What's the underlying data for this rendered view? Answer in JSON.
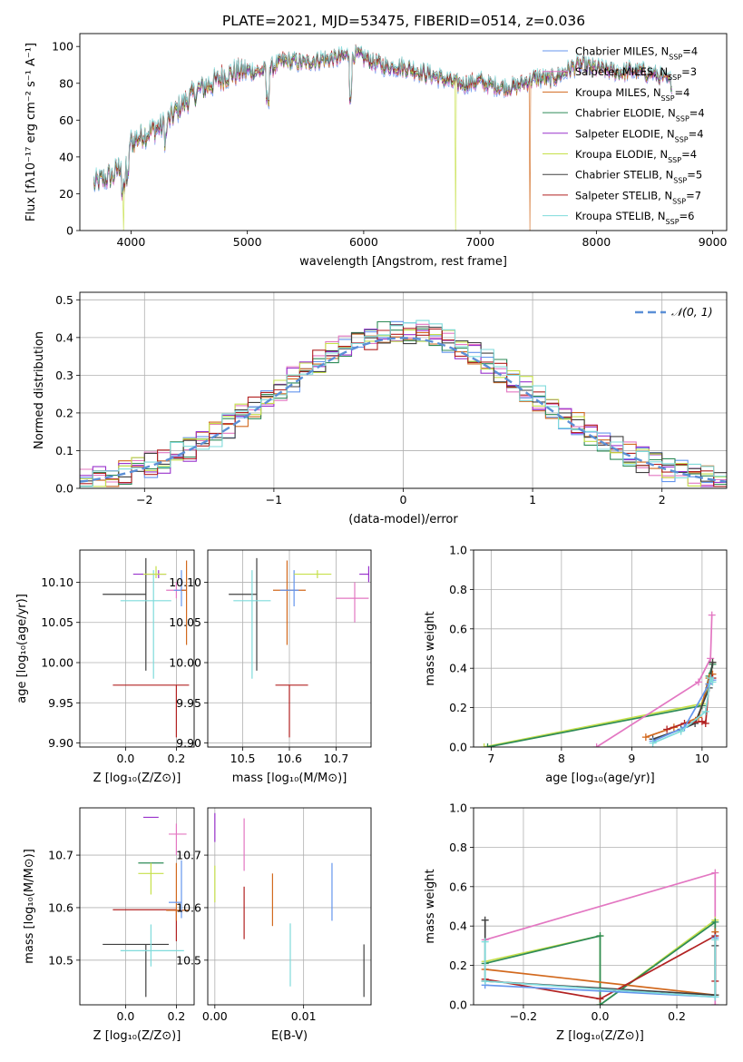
{
  "chart_data": [
    {
      "type": "line",
      "id": "spectrum",
      "title": "PLATE=2021, MJD=53475, FIBERID=0514, z=0.036",
      "xlabel": "wavelength [Angstrom, rest frame]",
      "ylabel": "Flux [fλ10⁻¹⁷ erg cm⁻² s⁻¹ A⁻¹]",
      "xlim": [
        3560,
        9120
      ],
      "ylim": [
        0,
        107
      ],
      "xticks": [
        4000,
        5000,
        6000,
        7000,
        8000,
        9000
      ],
      "yticks": [
        0,
        20,
        40,
        60,
        80,
        100
      ],
      "grid": false,
      "legend_position": "top-right",
      "shape": {
        "x": [
          3680,
          3760,
          3850,
          3900,
          3950,
          4000,
          4100,
          4200,
          4300,
          4400,
          4500,
          4600,
          4700,
          4800,
          4900,
          5000,
          5100,
          5200,
          5300,
          5400,
          5500,
          5600,
          5700,
          5800,
          5900,
          6000,
          6100,
          6200,
          6300,
          6400,
          6500,
          6600,
          6700,
          6800,
          6900,
          7000,
          7100,
          7200,
          7300,
          7400,
          7500,
          7600,
          7700,
          7800,
          7900,
          8000,
          8100,
          8200,
          8300,
          8400,
          8500,
          8600,
          8650
        ],
        "y": [
          25,
          28,
          30,
          35,
          42,
          48,
          52,
          55,
          58,
          66,
          72,
          77,
          80,
          84,
          86,
          87,
          86,
          88,
          92,
          92,
          91,
          93,
          93,
          94,
          96,
          94,
          91,
          89,
          89,
          88,
          86,
          84,
          82,
          80,
          80,
          81,
          79,
          78,
          78,
          81,
          83,
          82,
          85,
          89,
          90,
          88,
          87,
          86,
          87,
          86,
          85,
          82,
          80
        ]
      },
      "dips": [
        {
          "x": 3935,
          "y": 0,
          "series": 5
        },
        {
          "x": 6790,
          "y": 0,
          "series": 5
        },
        {
          "x": 7430,
          "y": 0,
          "series": 2
        }
      ],
      "series": [
        {
          "name": "Chabrier MILES, N",
          "sub": "SSP",
          "suffix": "=4",
          "color": "#6495ed"
        },
        {
          "name": "Salpeter MILES, N",
          "sub": "SSP",
          "suffix": "=3",
          "color": "#e377c2"
        },
        {
          "name": "Kroupa MILES, N",
          "sub": "SSP",
          "suffix": "=4",
          "color": "#d2691e"
        },
        {
          "name": "Chabrier ELODIE, N",
          "sub": "SSP",
          "suffix": "=4",
          "color": "#2e8b57"
        },
        {
          "name": "Salpeter ELODIE, N",
          "sub": "SSP",
          "suffix": "=4",
          "color": "#9932cc"
        },
        {
          "name": "Kroupa ELODIE, N",
          "sub": "SSP",
          "suffix": "=4",
          "color": "#c6e04a"
        },
        {
          "name": "Chabrier STELIB, N",
          "sub": "SSP",
          "suffix": "=5",
          "color": "#404040"
        },
        {
          "name": "Salpeter STELIB, N",
          "sub": "SSP",
          "suffix": "=7",
          "color": "#b22222"
        },
        {
          "name": "Kroupa STELIB, N",
          "sub": "SSP",
          "suffix": "=6",
          "color": "#7fdbdb"
        }
      ]
    },
    {
      "type": "step",
      "id": "residuals",
      "xlabel": "(data-model)/error",
      "ylabel": "Normed distribution",
      "xlim": [
        -2.5,
        2.5
      ],
      "ylim": [
        0,
        0.52
      ],
      "xticks": [
        -2,
        -1,
        0,
        1,
        2
      ],
      "yticks": [
        0.0,
        0.1,
        0.2,
        0.3,
        0.4,
        0.5
      ],
      "xtick_labels": [
        "−2",
        "−1",
        "0",
        "1",
        "2"
      ],
      "ytick_labels": [
        "0.0",
        "0.1",
        "0.2",
        "0.3",
        "0.4",
        "0.5"
      ],
      "grid": true,
      "bin_width": 0.1,
      "legend": {
        "label": "𝒩(0, 1)",
        "color": "#5b8fd6",
        "position": "top-right"
      }
    },
    {
      "type": "errorbar",
      "id": "age_vs_Z",
      "xlabel": "Z [log₁₀(Z/Z⊙)]",
      "ylabel": "age  [log₁₀(age/yr)]",
      "xlim": [
        -0.18,
        0.27
      ],
      "ylim": [
        9.895,
        10.14
      ],
      "xticks": [
        0.0,
        0.2
      ],
      "yticks": [
        9.9,
        9.95,
        10.0,
        10.05,
        10.1
      ],
      "xtick_labels": [
        "0.0",
        "0.2"
      ],
      "ytick_labels": [
        "9.90",
        "9.95",
        "10.00",
        "10.05",
        "10.10"
      ],
      "grid": true,
      "points": [
        {
          "x": 0.08,
          "y": 10.085,
          "xerr": [
            0.17,
            0.0
          ],
          "yerr": [
            0.095,
            0.045
          ],
          "color": "#404040"
        },
        {
          "x": 0.13,
          "y": 10.11,
          "xerr": [
            0.1,
            0.03
          ],
          "yerr": [
            0.005,
            0.005
          ],
          "color": "#9932cc"
        },
        {
          "x": 0.11,
          "y": 10.077,
          "xerr": [
            0.13,
            0.07
          ],
          "yerr": [
            0.097,
            0.038
          ],
          "color": "#7fdbdb"
        },
        {
          "x": 0.12,
          "y": 10.11,
          "xerr": [
            0.05,
            0.04
          ],
          "yerr": [
            0.005,
            0.01
          ],
          "color": "#c6e04a"
        },
        {
          "x": 0.2,
          "y": 9.972,
          "xerr": [
            0.25,
            0.05
          ],
          "yerr": [
            0.065,
            0.0
          ],
          "color": "#b22222"
        },
        {
          "x": 0.2,
          "y": 10.09,
          "xerr": [
            0.04,
            0.04
          ],
          "yerr": [
            0.01,
            0.01
          ],
          "color": "#e377c2"
        },
        {
          "x": 0.22,
          "y": 10.09,
          "xerr": [
            0.03,
            0.02
          ],
          "yerr": [
            0.02,
            0.025
          ],
          "color": "#6495ed"
        },
        {
          "x": 0.24,
          "y": 10.09,
          "xerr": [
            0.02,
            0.0
          ],
          "yerr": [
            0.068,
            0.037
          ],
          "color": "#d2691e"
        }
      ]
    },
    {
      "type": "errorbar",
      "id": "age_vs_mass",
      "xlabel": "mass [log₁₀(M/M⊙)]",
      "ylabel": "",
      "xlim": [
        10.425,
        10.775
      ],
      "ylim": [
        9.895,
        10.14
      ],
      "xticks": [
        10.5,
        10.6,
        10.7
      ],
      "yticks": [
        9.9,
        9.95,
        10.0,
        10.05,
        10.1
      ],
      "xtick_labels": [
        "10.5",
        "10.6",
        "10.7"
      ],
      "ytick_labels": [
        "9.90",
        "9.95",
        "10.00",
        "10.05",
        "10.10"
      ],
      "grid": true,
      "points": [
        {
          "x": 10.53,
          "y": 10.085,
          "xerr": [
            0.06,
            0.0
          ],
          "yerr": [
            0.095,
            0.045
          ],
          "color": "#404040"
        },
        {
          "x": 10.52,
          "y": 10.077,
          "xerr": [
            0.04,
            0.04
          ],
          "yerr": [
            0.097,
            0.038
          ],
          "color": "#7fdbdb"
        },
        {
          "x": 10.6,
          "y": 9.972,
          "xerr": [
            0.03,
            0.04
          ],
          "yerr": [
            0.065,
            0.0
          ],
          "color": "#b22222"
        },
        {
          "x": 10.595,
          "y": 10.09,
          "xerr": [
            0.03,
            0.04
          ],
          "yerr": [
            0.068,
            0.037
          ],
          "color": "#d2691e"
        },
        {
          "x": 10.61,
          "y": 10.09,
          "xerr": [
            0.03,
            0.01
          ],
          "yerr": [
            0.02,
            0.025
          ],
          "color": "#6495ed"
        },
        {
          "x": 10.66,
          "y": 10.11,
          "xerr": [
            0.05,
            0.03
          ],
          "yerr": [
            0.005,
            0.005
          ],
          "color": "#c6e04a"
        },
        {
          "x": 10.74,
          "y": 10.08,
          "xerr": [
            0.04,
            0.03
          ],
          "yerr": [
            0.03,
            0.02
          ],
          "color": "#e377c2"
        },
        {
          "x": 10.77,
          "y": 10.11,
          "xerr": [
            0.02,
            0.0
          ],
          "yerr": [
            0.01,
            0.01
          ],
          "color": "#9932cc"
        }
      ]
    },
    {
      "type": "line",
      "id": "massweight_vs_age",
      "xlabel": "age  [log₁₀(age/yr)]",
      "ylabel": "mass weight",
      "xlim": [
        6.75,
        10.35
      ],
      "ylim": [
        0,
        1.0
      ],
      "xticks": [
        7,
        8,
        9,
        10
      ],
      "yticks": [
        0.0,
        0.2,
        0.4,
        0.6,
        0.8,
        1.0
      ],
      "xtick_labels": [
        "7",
        "8",
        "9",
        "10"
      ],
      "ytick_labels": [
        "0.0",
        "0.2",
        "0.4",
        "0.6",
        "0.8",
        "1.0"
      ],
      "grid": true,
      "series": [
        {
          "color": "#c6e04a",
          "x": [
            6.9,
            10.0,
            10.12,
            10.15
          ],
          "y": [
            0.0,
            0.22,
            0.35,
            0.43
          ]
        },
        {
          "color": "#2e8b57",
          "x": [
            6.95,
            10.0,
            10.1,
            10.15
          ],
          "y": [
            0.0,
            0.21,
            0.36,
            0.42
          ]
        },
        {
          "color": "#e377c2",
          "x": [
            8.5,
            9.95,
            10.12,
            10.14
          ],
          "y": [
            0.0,
            0.33,
            0.45,
            0.67
          ]
        },
        {
          "color": "#d2691e",
          "x": [
            9.2,
            9.6,
            9.95,
            10.1,
            10.15
          ],
          "y": [
            0.05,
            0.1,
            0.15,
            0.35,
            0.37
          ]
        },
        {
          "color": "#404040",
          "x": [
            9.3,
            9.7,
            9.9,
            10.1,
            10.15
          ],
          "y": [
            0.04,
            0.09,
            0.12,
            0.3,
            0.43
          ]
        },
        {
          "color": "#b22222",
          "x": [
            9.5,
            9.75,
            10.0,
            10.05,
            10.1,
            10.15
          ],
          "y": [
            0.09,
            0.12,
            0.13,
            0.12,
            0.32,
            0.35
          ]
        },
        {
          "color": "#6495ed",
          "x": [
            9.3,
            9.75,
            10.1,
            10.15
          ],
          "y": [
            0.03,
            0.1,
            0.32,
            0.34
          ]
        },
        {
          "color": "#7fdbdb",
          "x": [
            9.3,
            9.7,
            10.05,
            10.12,
            10.15
          ],
          "y": [
            0.02,
            0.08,
            0.18,
            0.35,
            0.33
          ]
        }
      ]
    },
    {
      "type": "errorbar",
      "id": "mass_vs_Z",
      "xlabel": "Z [log₁₀(Z/Z⊙)]",
      "ylabel": "mass [log₁₀(M/M⊙)]",
      "xlim": [
        -0.18,
        0.27
      ],
      "ylim": [
        10.415,
        10.79
      ],
      "xticks": [
        0.0,
        0.2
      ],
      "yticks": [
        10.5,
        10.6,
        10.7
      ],
      "xtick_labels": [
        "0.0",
        "0.2"
      ],
      "ytick_labels": [
        "10.5",
        "10.6",
        "10.7"
      ],
      "grid": true,
      "points": [
        {
          "x": 0.08,
          "y": 10.53,
          "xerr": [
            0.17,
            0.09
          ],
          "yerr": [
            0.1,
            0.0
          ],
          "color": "#404040"
        },
        {
          "x": 0.1,
          "y": 10.518,
          "xerr": [
            0.12,
            0.13
          ],
          "yerr": [
            0.03,
            0.05
          ],
          "color": "#7fdbdb"
        },
        {
          "x": 0.2,
          "y": 10.596,
          "xerr": [
            0.25,
            0.0
          ],
          "yerr": [
            0.06,
            0.0
          ],
          "color": "#b22222"
        },
        {
          "x": 0.2,
          "y": 10.595,
          "xerr": [
            0.04,
            0.05
          ],
          "yerr": [
            0.02,
            0.09
          ],
          "color": "#d2691e"
        },
        {
          "x": 0.2,
          "y": 10.74,
          "xerr": [
            0.03,
            0.04
          ],
          "yerr": [
            0.04,
            0.02
          ],
          "color": "#e377c2"
        },
        {
          "x": 0.22,
          "y": 10.61,
          "xerr": [
            0.05,
            0.0
          ],
          "yerr": [
            0.03,
            0.08
          ],
          "color": "#6495ed"
        },
        {
          "x": 0.13,
          "y": 10.772,
          "xerr": [
            0.06,
            0.0
          ],
          "yerr": [
            0.0,
            0.0
          ],
          "color": "#9932cc"
        },
        {
          "x": 0.1,
          "y": 10.685,
          "xerr": [
            0.05,
            0.05
          ],
          "yerr": [
            0.0,
            0.0
          ],
          "color": "#2e8b57"
        },
        {
          "x": 0.1,
          "y": 10.665,
          "xerr": [
            0.05,
            0.05
          ],
          "yerr": [
            0.04,
            0.02
          ],
          "color": "#c6e04a"
        }
      ]
    },
    {
      "type": "errorbar",
      "id": "mass_vs_ebv",
      "xlabel": "E(B-V)",
      "ylabel": "",
      "xlim": [
        -0.0008,
        0.0176
      ],
      "ylim": [
        10.415,
        10.79
      ],
      "xticks": [
        0.0,
        0.01
      ],
      "yticks": [
        10.5,
        10.6,
        10.7
      ],
      "xtick_labels": [
        "0.00",
        "0.01"
      ],
      "ytick_labels": [
        "10.5",
        "10.6",
        "10.7"
      ],
      "grid": true,
      "points": [
        {
          "x": 0.0,
          "y": 10.755,
          "xerr": [
            0,
            0
          ],
          "yerr": [
            0.03,
            0.025
          ],
          "color": "#9932cc"
        },
        {
          "x": 0.0,
          "y": 10.66,
          "xerr": [
            0,
            0
          ],
          "yerr": [
            0.05,
            0.02
          ],
          "color": "#c6e04a"
        },
        {
          "x": 0.0033,
          "y": 10.72,
          "xerr": [
            0,
            0
          ],
          "yerr": [
            0.05,
            0.05
          ],
          "color": "#e377c2"
        },
        {
          "x": 0.0033,
          "y": 10.59,
          "xerr": [
            0,
            0
          ],
          "yerr": [
            0.05,
            0.05
          ],
          "color": "#b22222"
        },
        {
          "x": 0.0065,
          "y": 10.615,
          "xerr": [
            0,
            0
          ],
          "yerr": [
            0.05,
            0.05
          ],
          "color": "#d2691e"
        },
        {
          "x": 0.0085,
          "y": 10.51,
          "xerr": [
            0,
            0
          ],
          "yerr": [
            0.06,
            0.06
          ],
          "color": "#7fdbdb"
        },
        {
          "x": 0.0132,
          "y": 10.63,
          "xerr": [
            0,
            0
          ],
          "yerr": [
            0.055,
            0.055
          ],
          "color": "#6495ed"
        },
        {
          "x": 0.0168,
          "y": 10.48,
          "xerr": [
            0,
            0
          ],
          "yerr": [
            0.05,
            0.05
          ],
          "color": "#404040"
        }
      ]
    },
    {
      "type": "line",
      "id": "massweight_vs_Z",
      "xlabel": "Z [log₁₀(Z/Z⊙)]",
      "ylabel": "mass weight",
      "xlim": [
        -0.33,
        0.33
      ],
      "ylim": [
        0,
        1.0
      ],
      "xticks": [
        -0.2,
        0.0,
        0.2
      ],
      "yticks": [
        0.0,
        0.2,
        0.4,
        0.6,
        0.8,
        1.0
      ],
      "xtick_labels": [
        "−0.2",
        "0.0",
        "0.2"
      ],
      "ytick_labels": [
        "0.0",
        "0.2",
        "0.4",
        "0.6",
        "0.8",
        "1.0"
      ],
      "grid": true,
      "series": [
        {
          "color": "#e377c2",
          "x": [
            -0.3,
            0.3,
            0.3
          ],
          "y": [
            0.33,
            0.67,
            0.0
          ]
        },
        {
          "color": "#c6e04a",
          "x": [
            -0.3,
            0.0,
            0.0,
            0.3,
            0.3
          ],
          "y": [
            0.22,
            0.35,
            0.0,
            0.43,
            0.05
          ]
        },
        {
          "color": "#2e8b57",
          "x": [
            -0.3,
            0.0,
            0.0,
            0.3,
            0.3
          ],
          "y": [
            0.21,
            0.35,
            0.0,
            0.42,
            0.05
          ]
        },
        {
          "color": "#d2691e",
          "x": [
            -0.3,
            0.3,
            0.3
          ],
          "y": [
            0.18,
            0.05,
            0.37
          ]
        },
        {
          "color": "#404040",
          "x": [
            -0.3,
            -0.3,
            0.3,
            0.3
          ],
          "y": [
            0.43,
            0.12,
            0.05,
            0.3
          ]
        },
        {
          "color": "#b22222",
          "x": [
            -0.3,
            0.0,
            0.3,
            0.3
          ],
          "y": [
            0.13,
            0.03,
            0.35,
            0.12
          ]
        },
        {
          "color": "#6495ed",
          "x": [
            -0.3,
            0.3,
            0.3
          ],
          "y": [
            0.1,
            0.04,
            0.34
          ]
        },
        {
          "color": "#7fdbdb",
          "x": [
            -0.3,
            -0.3,
            0.3,
            0.3
          ],
          "y": [
            0.32,
            0.12,
            0.04,
            0.33
          ]
        }
      ]
    }
  ]
}
